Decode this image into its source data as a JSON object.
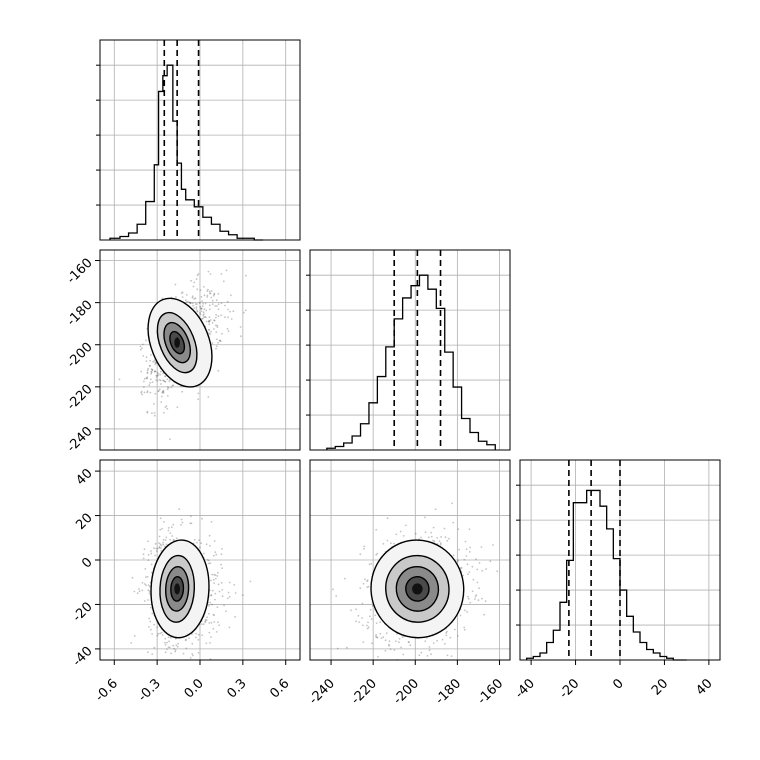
{
  "chart_data": {
    "type": "corner",
    "parameters": [
      {
        "range": [
          -0.7,
          0.7
        ],
        "ticks": [
          "-0.6",
          "-0.3",
          "0.0",
          "0.3",
          "0.6"
        ],
        "tick_values": [
          -0.6,
          -0.3,
          0.0,
          0.3,
          0.6
        ],
        "quantiles": [
          -0.25,
          -0.16,
          -0.01
        ],
        "mean": -0.16,
        "sd": 0.08
      },
      {
        "range": [
          -250,
          -155
        ],
        "ticks": [
          "-240",
          "-220",
          "-200",
          "-180",
          "-160"
        ],
        "tick_values": [
          -240,
          -220,
          -200,
          -180,
          -160
        ],
        "quantiles": [
          -210,
          -199,
          -188
        ],
        "mean": -199,
        "sd": 10
      },
      {
        "range": [
          -45,
          45
        ],
        "ticks": [
          "-40",
          "-20",
          "0",
          "20",
          "40"
        ],
        "tick_values": [
          -40,
          -20,
          0,
          20,
          40
        ],
        "quantiles": [
          -23,
          -13,
          0
        ],
        "mean": -13,
        "sd": 10
      }
    ],
    "histograms": [
      {
        "bin_edges": [
          -0.63,
          -0.56,
          -0.5,
          -0.44,
          -0.38,
          -0.32,
          -0.29,
          -0.26,
          -0.23,
          -0.19,
          -0.16,
          -0.13,
          -0.1,
          -0.04,
          0.02,
          0.08,
          0.14,
          0.2,
          0.26,
          0.32,
          0.38,
          0.44
        ],
        "counts": [
          0.01,
          0.02,
          0.04,
          0.09,
          0.22,
          0.43,
          0.85,
          0.94,
          1.0,
          0.68,
          0.44,
          0.29,
          0.23,
          0.19,
          0.13,
          0.09,
          0.05,
          0.03,
          0.01,
          0.01,
          0.0
        ]
      },
      {
        "bin_edges": [
          -242,
          -238,
          -234,
          -230,
          -226,
          -222,
          -218,
          -214,
          -210,
          -206,
          -202,
          -198,
          -194,
          -190,
          -186,
          -182,
          -178,
          -174,
          -170,
          -166,
          -162
        ],
        "counts": [
          0.01,
          0.02,
          0.04,
          0.08,
          0.15,
          0.27,
          0.42,
          0.59,
          0.75,
          0.87,
          0.94,
          1.0,
          0.92,
          0.81,
          0.56,
          0.36,
          0.18,
          0.1,
          0.05,
          0.03
        ]
      },
      {
        "bin_edges": [
          -42,
          -39,
          -36,
          -33,
          -30,
          -27,
          -24,
          -21,
          -18,
          -15,
          -12,
          -9,
          -6,
          -3,
          0,
          3,
          6,
          9,
          12,
          15,
          18,
          21,
          24,
          27,
          30
        ],
        "counts": [
          0.01,
          0.02,
          0.04,
          0.1,
          0.17,
          0.33,
          0.57,
          0.9,
          0.9,
          0.97,
          0.97,
          0.88,
          0.75,
          0.58,
          0.4,
          0.25,
          0.16,
          0.1,
          0.06,
          0.04,
          0.02,
          0.01,
          0.0,
          0.0
        ]
      }
    ],
    "contour_levels": 4,
    "grid": true
  }
}
